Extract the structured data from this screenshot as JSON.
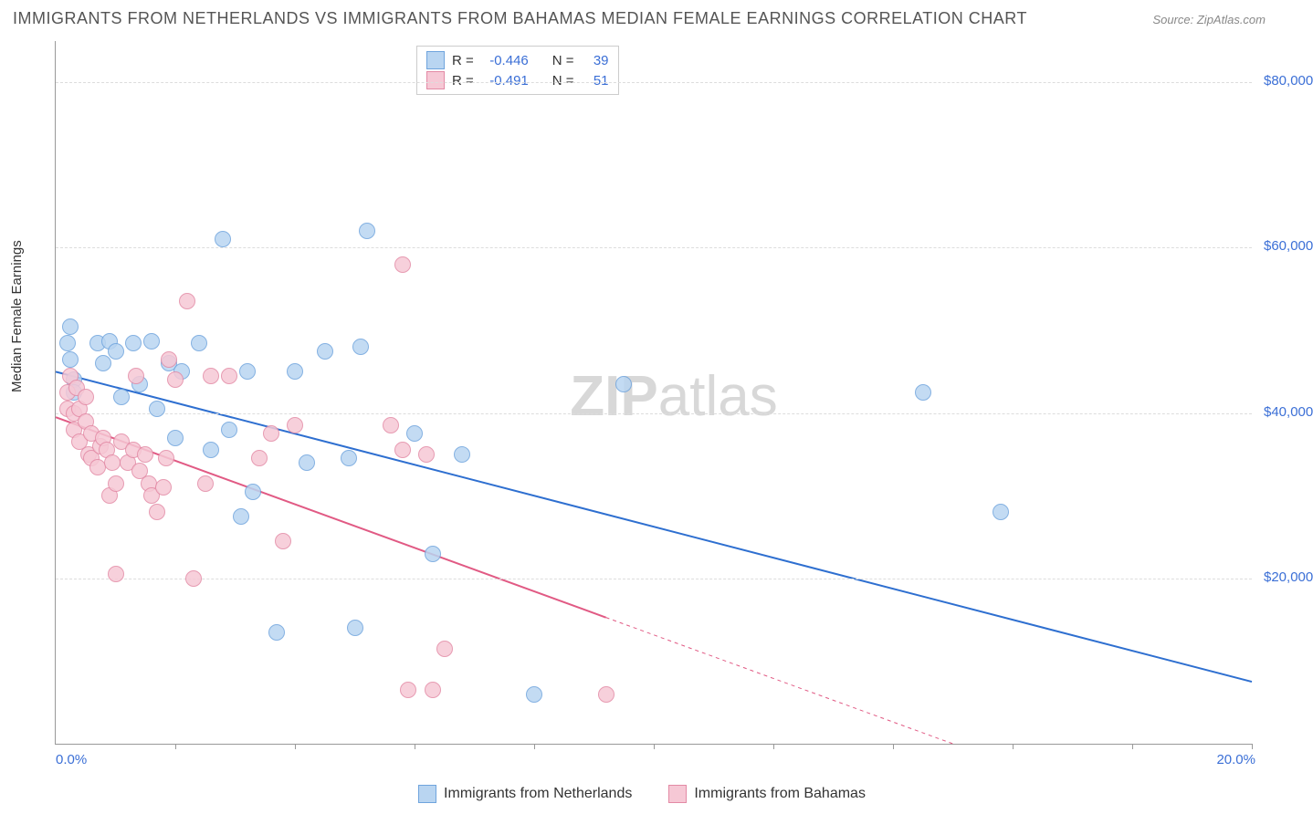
{
  "title": "IMMIGRANTS FROM NETHERLANDS VS IMMIGRANTS FROM BAHAMAS MEDIAN FEMALE EARNINGS CORRELATION CHART",
  "source_label": "Source: ",
  "source_name": "ZipAtlas.com",
  "ylabel": "Median Female Earnings",
  "watermark_bold": "ZIP",
  "watermark_rest": "atlas",
  "watermark_color": "#d8d8d8",
  "watermark_fontsize": 62,
  "watermark_left_pct": 43,
  "watermark_top_pct": 46,
  "chart": {
    "type": "scatter",
    "xlim": [
      0,
      20
    ],
    "ylim": [
      0,
      85000
    ],
    "x_ticks": [
      2,
      4,
      6,
      8,
      10,
      12,
      14,
      16,
      18,
      20
    ],
    "x_tick_label_min": "0.0%",
    "x_tick_label_max": "20.0%",
    "x_label_color": "#3b6fd6",
    "y_gridlines": [
      {
        "value": 20000,
        "label": "$20,000"
      },
      {
        "value": 40000,
        "label": "$40,000"
      },
      {
        "value": 60000,
        "label": "$60,000"
      },
      {
        "value": 80000,
        "label": "$80,000"
      }
    ],
    "y_label_color": "#3b6fd6",
    "grid_color": "#dddddd",
    "axis_color": "#999999",
    "background_color": "#ffffff",
    "point_radius": 8,
    "point_border_width": 1.2,
    "trend_line_width": 2
  },
  "series": [
    {
      "key": "netherlands",
      "label": "Immigrants from Netherlands",
      "fill_color": "#b9d5f1",
      "border_color": "#6fa4dd",
      "line_color": "#2e6fd0",
      "r_value": "-0.446",
      "n_value": "39",
      "trend": {
        "x1": 0,
        "y1": 45000,
        "x2": 20,
        "y2": 7500,
        "dash_after_x": null
      },
      "points": [
        {
          "x": 0.2,
          "y": 48500
        },
        {
          "x": 0.25,
          "y": 50500
        },
        {
          "x": 0.25,
          "y": 46500
        },
        {
          "x": 0.3,
          "y": 44000
        },
        {
          "x": 0.3,
          "y": 42500
        },
        {
          "x": 0.7,
          "y": 48500
        },
        {
          "x": 0.8,
          "y": 46000
        },
        {
          "x": 0.9,
          "y": 48700
        },
        {
          "x": 1.0,
          "y": 47500
        },
        {
          "x": 1.1,
          "y": 42000
        },
        {
          "x": 1.3,
          "y": 48500
        },
        {
          "x": 1.4,
          "y": 43500
        },
        {
          "x": 1.6,
          "y": 48700
        },
        {
          "x": 1.7,
          "y": 40500
        },
        {
          "x": 1.9,
          "y": 46000
        },
        {
          "x": 2.0,
          "y": 37000
        },
        {
          "x": 2.1,
          "y": 45000
        },
        {
          "x": 2.4,
          "y": 48500
        },
        {
          "x": 2.6,
          "y": 35500
        },
        {
          "x": 2.8,
          "y": 61000
        },
        {
          "x": 2.9,
          "y": 38000
        },
        {
          "x": 3.1,
          "y": 27500
        },
        {
          "x": 3.2,
          "y": 45000
        },
        {
          "x": 3.3,
          "y": 30500
        },
        {
          "x": 3.7,
          "y": 13500
        },
        {
          "x": 4.0,
          "y": 45000
        },
        {
          "x": 4.2,
          "y": 34000
        },
        {
          "x": 4.5,
          "y": 47500
        },
        {
          "x": 4.9,
          "y": 34500
        },
        {
          "x": 5.0,
          "y": 14000
        },
        {
          "x": 5.1,
          "y": 48000
        },
        {
          "x": 5.2,
          "y": 62000
        },
        {
          "x": 6.0,
          "y": 37500
        },
        {
          "x": 6.3,
          "y": 23000
        },
        {
          "x": 6.8,
          "y": 35000
        },
        {
          "x": 8.0,
          "y": 6000
        },
        {
          "x": 9.5,
          "y": 43500
        },
        {
          "x": 14.5,
          "y": 42500
        },
        {
          "x": 15.8,
          "y": 28000
        }
      ]
    },
    {
      "key": "bahamas",
      "label": "Immigrants from Bahamas",
      "fill_color": "#f6c8d5",
      "border_color": "#e38aa5",
      "line_color": "#e15a84",
      "r_value": "-0.491",
      "n_value": "51",
      "trend": {
        "x1": 0,
        "y1": 39500,
        "x2": 15,
        "y2": 0,
        "dash_after_x": 9.2
      },
      "points": [
        {
          "x": 0.2,
          "y": 40500
        },
        {
          "x": 0.2,
          "y": 42500
        },
        {
          "x": 0.25,
          "y": 44500
        },
        {
          "x": 0.3,
          "y": 40000
        },
        {
          "x": 0.3,
          "y": 38000
        },
        {
          "x": 0.35,
          "y": 43000
        },
        {
          "x": 0.4,
          "y": 40500
        },
        {
          "x": 0.4,
          "y": 36500
        },
        {
          "x": 0.5,
          "y": 42000
        },
        {
          "x": 0.5,
          "y": 39000
        },
        {
          "x": 0.55,
          "y": 35000
        },
        {
          "x": 0.6,
          "y": 37500
        },
        {
          "x": 0.6,
          "y": 34500
        },
        {
          "x": 0.7,
          "y": 33500
        },
        {
          "x": 0.75,
          "y": 36000
        },
        {
          "x": 0.8,
          "y": 37000
        },
        {
          "x": 0.85,
          "y": 35500
        },
        {
          "x": 0.9,
          "y": 30000
        },
        {
          "x": 0.95,
          "y": 34000
        },
        {
          "x": 1.0,
          "y": 31500
        },
        {
          "x": 1.0,
          "y": 20500
        },
        {
          "x": 1.1,
          "y": 36500
        },
        {
          "x": 1.2,
          "y": 34000
        },
        {
          "x": 1.3,
          "y": 35500
        },
        {
          "x": 1.35,
          "y": 44500
        },
        {
          "x": 1.4,
          "y": 33000
        },
        {
          "x": 1.5,
          "y": 35000
        },
        {
          "x": 1.55,
          "y": 31500
        },
        {
          "x": 1.6,
          "y": 30000
        },
        {
          "x": 1.7,
          "y": 28000
        },
        {
          "x": 1.8,
          "y": 31000
        },
        {
          "x": 1.85,
          "y": 34500
        },
        {
          "x": 1.9,
          "y": 46500
        },
        {
          "x": 2.0,
          "y": 44000
        },
        {
          "x": 2.2,
          "y": 53500
        },
        {
          "x": 2.3,
          "y": 20000
        },
        {
          "x": 2.5,
          "y": 31500
        },
        {
          "x": 2.6,
          "y": 44500
        },
        {
          "x": 2.9,
          "y": 44500
        },
        {
          "x": 3.4,
          "y": 34500
        },
        {
          "x": 3.6,
          "y": 37500
        },
        {
          "x": 3.8,
          "y": 24500
        },
        {
          "x": 4.0,
          "y": 38500
        },
        {
          "x": 5.6,
          "y": 38500
        },
        {
          "x": 5.8,
          "y": 35500
        },
        {
          "x": 5.8,
          "y": 58000
        },
        {
          "x": 5.9,
          "y": 6500
        },
        {
          "x": 6.2,
          "y": 35000
        },
        {
          "x": 6.3,
          "y": 6500
        },
        {
          "x": 6.5,
          "y": 11500
        },
        {
          "x": 9.2,
          "y": 6000
        }
      ]
    }
  ],
  "stats_labels": {
    "r": "R =",
    "n": "N ="
  }
}
